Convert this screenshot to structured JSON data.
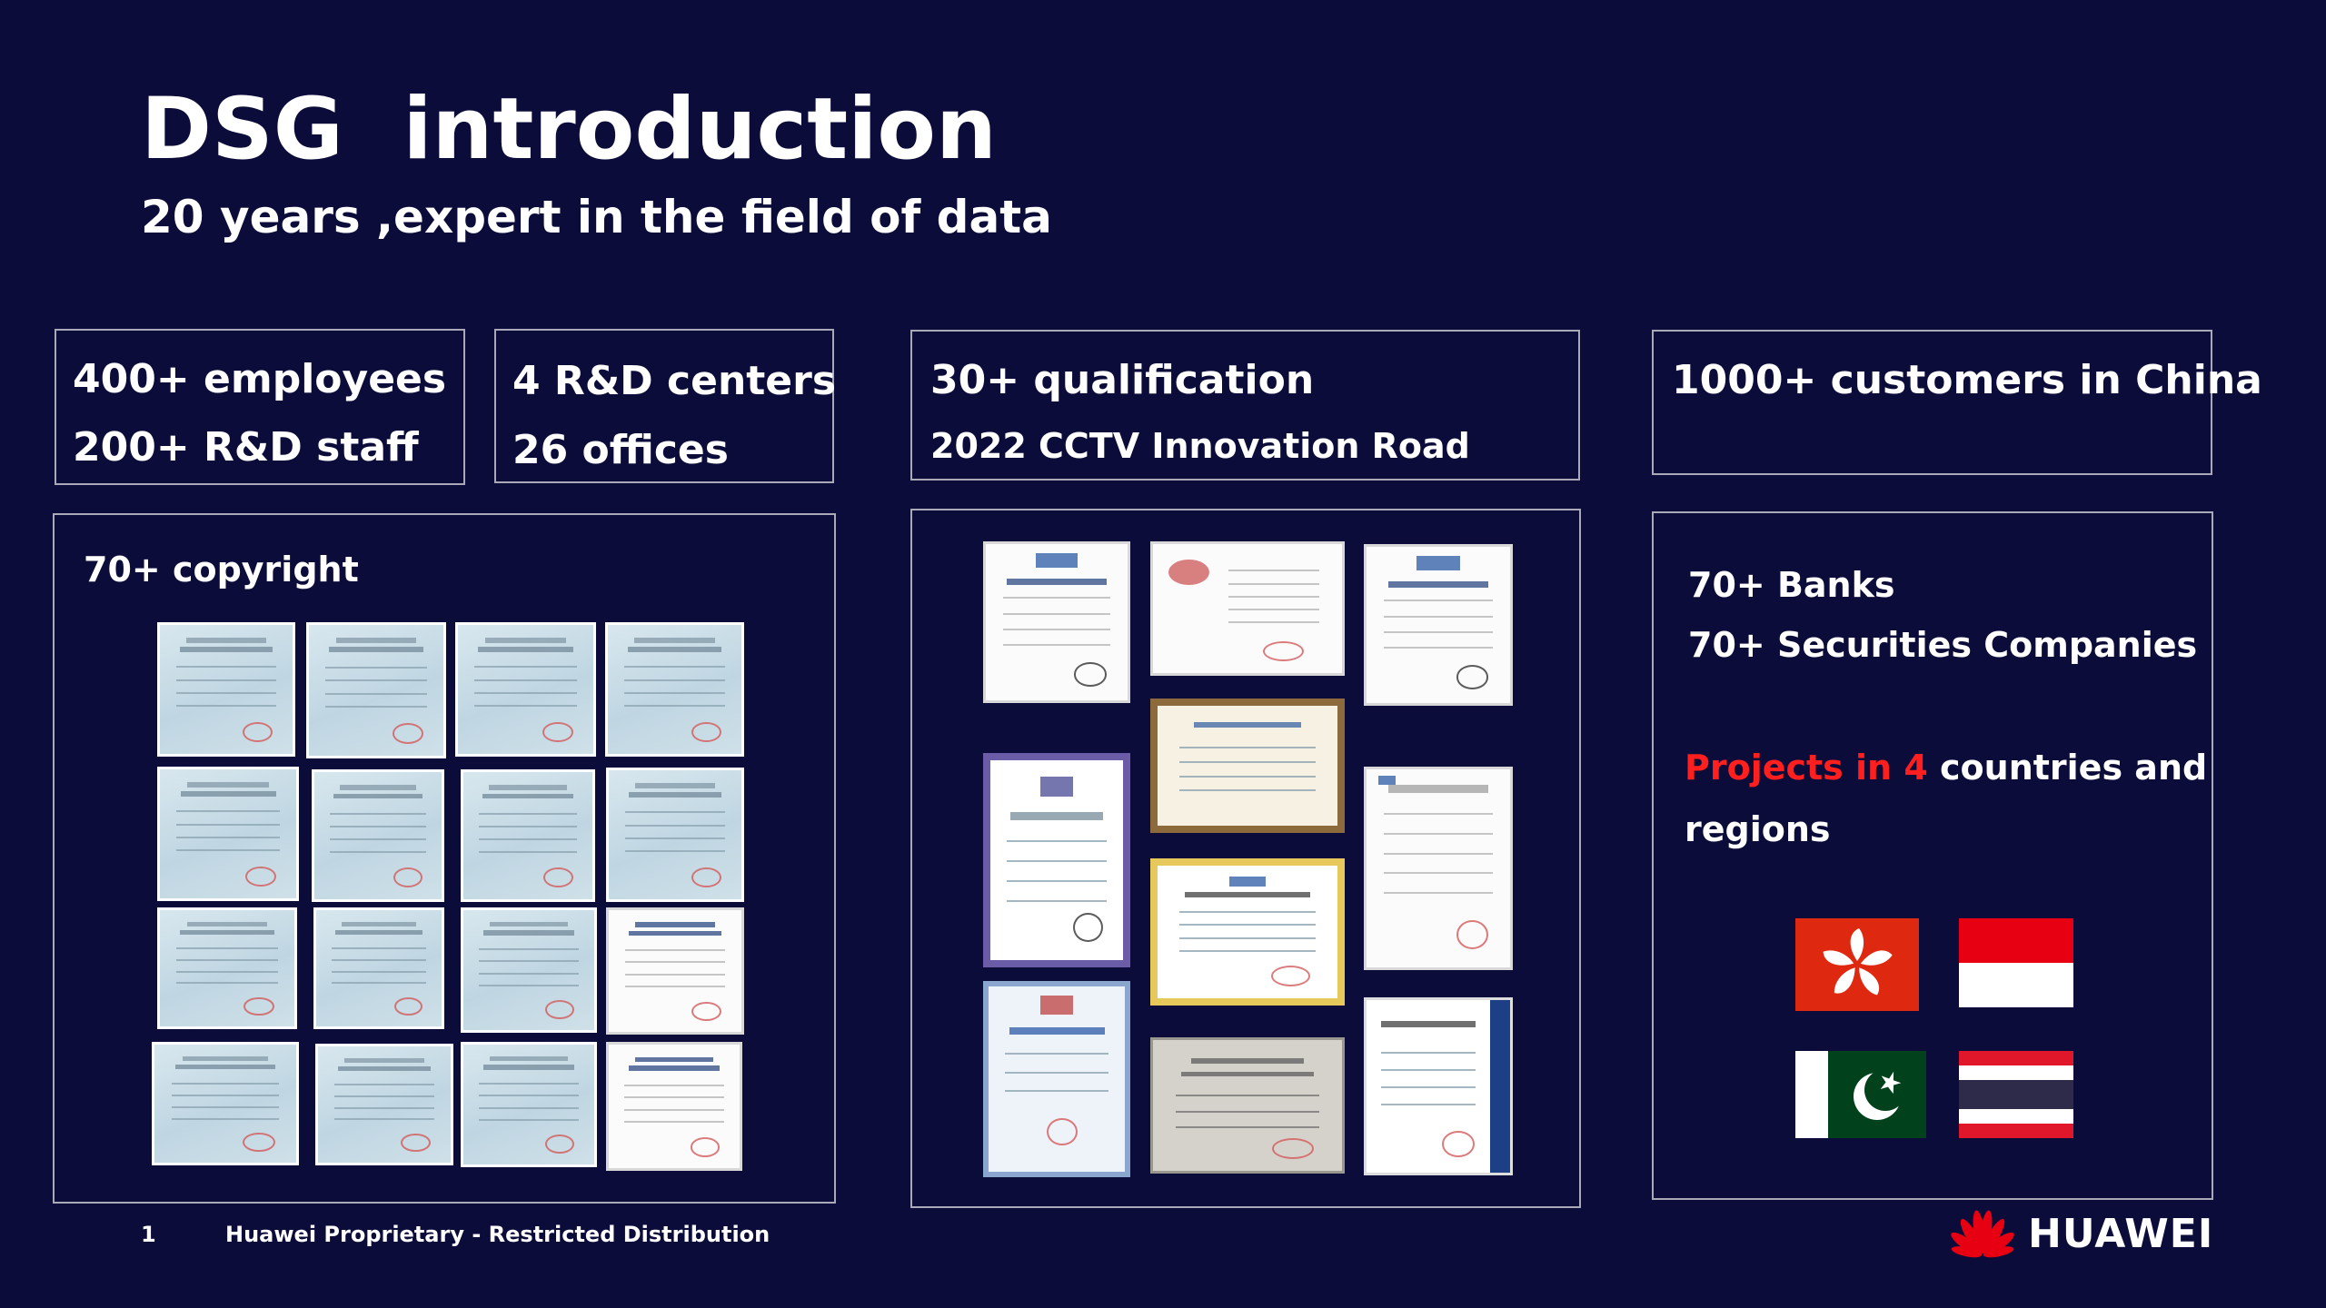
{
  "header": {
    "title": "DSG  introduction",
    "subtitle": "20 years ,expert in the field of data"
  },
  "stats": {
    "employees": "400+ employees",
    "rd_staff": "200+ R&D staff",
    "rd_centers": "4 R&D centers",
    "offices": "26 offices",
    "qualification": "30+ qualification",
    "cctv": "2022 CCTV Innovation Road",
    "customers": "1000+  customers in China"
  },
  "copyright": {
    "label": "70+ copyright"
  },
  "customers_panel": {
    "banks": "70+  Banks",
    "securities": "70+ Securities Companies",
    "projects_red": "Projects in 4",
    "projects_rest": " countries and",
    "projects_line2": "regions"
  },
  "flags": [
    "hong-kong-flag",
    "indonesia-flag",
    "pakistan-flag",
    "thailand-flag"
  ],
  "colors": {
    "background": "#0c0c3a",
    "accent_red": "#ff1f1f",
    "huawei_red": "#e60012"
  },
  "footer": {
    "page_number": "1",
    "notice": "Huawei Proprietary - Restricted Distribution",
    "brand": "HUAWEI"
  }
}
